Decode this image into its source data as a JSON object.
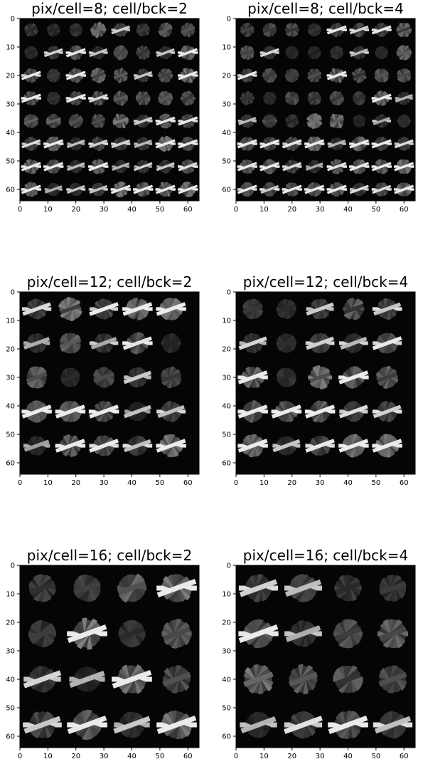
{
  "chart_data": [
    {
      "type": "heatmap",
      "title": "pix/cell=8; cell/bck=2",
      "xlim": [
        0,
        64
      ],
      "ylim": [
        64,
        0
      ],
      "xticks": [
        0,
        10,
        20,
        30,
        40,
        50,
        60
      ],
      "yticks": [
        0,
        10,
        20,
        30,
        40,
        50,
        60
      ],
      "pix_per_cell": 8,
      "cells_per_block": 2,
      "colormap": "gray"
    },
    {
      "type": "heatmap",
      "title": "pix/cell=8; cell/bck=4",
      "xlim": [
        0,
        64
      ],
      "ylim": [
        64,
        0
      ],
      "xticks": [
        0,
        10,
        20,
        30,
        40,
        50,
        60
      ],
      "yticks": [
        0,
        10,
        20,
        30,
        40,
        50,
        60
      ],
      "pix_per_cell": 8,
      "cells_per_block": 4,
      "colormap": "gray"
    },
    {
      "type": "heatmap",
      "title": "pix/cell=12; cell/bck=2",
      "xlim": [
        0,
        64
      ],
      "ylim": [
        64,
        0
      ],
      "xticks": [
        0,
        10,
        20,
        30,
        40,
        50,
        60
      ],
      "yticks": [
        0,
        10,
        20,
        30,
        40,
        50,
        60
      ],
      "pix_per_cell": 12,
      "cells_per_block": 2,
      "colormap": "gray"
    },
    {
      "type": "heatmap",
      "title": "pix/cell=12; cell/bck=4",
      "xlim": [
        0,
        64
      ],
      "ylim": [
        64,
        0
      ],
      "xticks": [
        0,
        10,
        20,
        30,
        40,
        50,
        60
      ],
      "yticks": [
        0,
        10,
        20,
        30,
        40,
        50,
        60
      ],
      "pix_per_cell": 12,
      "cells_per_block": 4,
      "colormap": "gray"
    },
    {
      "type": "heatmap",
      "title": "pix/cell=16; cell/bck=2",
      "xlim": [
        0,
        64
      ],
      "ylim": [
        64,
        0
      ],
      "xticks": [
        0,
        10,
        20,
        30,
        40,
        50,
        60
      ],
      "yticks": [
        0,
        10,
        20,
        30,
        40,
        50,
        60
      ],
      "pix_per_cell": 16,
      "cells_per_block": 2,
      "colormap": "gray"
    },
    {
      "type": "heatmap",
      "title": "pix/cell=16; cell/bck=4",
      "xlim": [
        0,
        64
      ],
      "ylim": [
        64,
        0
      ],
      "xticks": [
        0,
        10,
        20,
        30,
        40,
        50,
        60
      ],
      "yticks": [
        0,
        10,
        20,
        30,
        40,
        50,
        60
      ],
      "pix_per_cell": 16,
      "cells_per_block": 4,
      "colormap": "gray"
    }
  ]
}
